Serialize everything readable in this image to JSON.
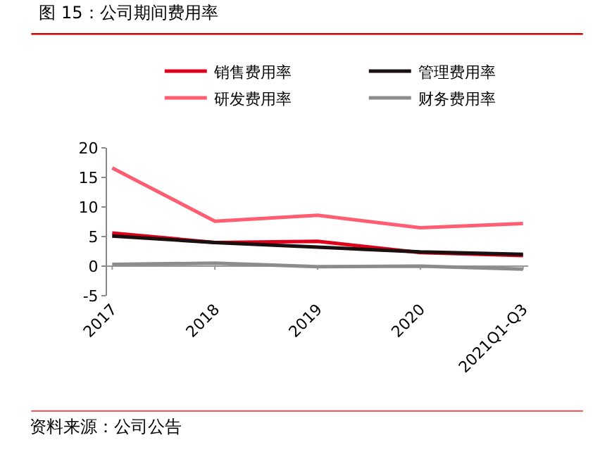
{
  "chart_data": {
    "type": "line",
    "title": "图 15：公司期间费用率",
    "categories": [
      "2017",
      "2018",
      "2019",
      "2020",
      "2021Q1-Q3"
    ],
    "series": [
      {
        "name": "销售费用率",
        "color": "#e0001b",
        "values": [
          5.6,
          4.0,
          4.2,
          2.3,
          1.8
        ]
      },
      {
        "name": "管理费用率",
        "color": "#1a1010",
        "values": [
          5.1,
          4.0,
          3.2,
          2.4,
          2.0
        ]
      },
      {
        "name": "研发费用率",
        "color": "#ff5e72",
        "values": [
          16.6,
          7.6,
          8.6,
          6.5,
          7.2
        ]
      },
      {
        "name": "财务费用率",
        "color": "#8c8c8c",
        "values": [
          0.3,
          0.5,
          -0.1,
          0.0,
          -0.5
        ]
      }
    ],
    "ylim": [
      -5,
      20
    ],
    "yticks": [
      -5,
      0,
      5,
      10,
      15,
      20
    ],
    "grid": false,
    "legend": "top",
    "marker": "none",
    "line_style": "solid",
    "annotations": [
      "资料来源：公司公告"
    ]
  }
}
